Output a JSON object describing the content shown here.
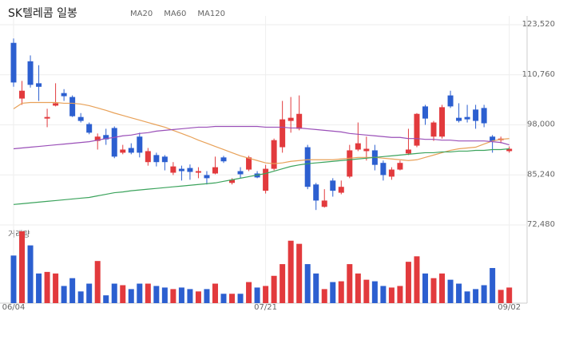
{
  "chart_data": {
    "type": "candlestick",
    "title": "SK텔레콤 일봉",
    "categories": [
      "06/04",
      null,
      null,
      null,
      null,
      null,
      null,
      null,
      null,
      null,
      null,
      null,
      null,
      null,
      null,
      null,
      null,
      null,
      null,
      null,
      null,
      null,
      null,
      null,
      null,
      null,
      null,
      null,
      null,
      null,
      "07/21",
      null,
      null,
      null,
      null,
      null,
      null,
      null,
      null,
      null,
      null,
      null,
      null,
      null,
      null,
      null,
      null,
      null,
      null,
      null,
      null,
      null,
      null,
      null,
      null,
      null,
      null,
      null,
      null,
      "09/02"
    ],
    "open": [
      118900,
      104700,
      114200,
      108600,
      99600,
      102900,
      106100,
      105100,
      100000,
      98200,
      93900,
      95400,
      97200,
      90900,
      92100,
      95000,
      88500,
      90300,
      89900,
      85800,
      86800,
      87000,
      85800,
      85200,
      85600,
      89700,
      83200,
      86200,
      86600,
      85600,
      81200,
      86800,
      92300,
      99000,
      97000,
      92300,
      82800,
      77100,
      83800,
      80700,
      84800,
      91700,
      91300,
      91500,
      88300,
      84800,
      86600,
      90700,
      92700,
      102700,
      95000,
      95000,
      105500,
      99800,
      100000,
      101900,
      102300,
      95000,
      94100,
      91300
    ],
    "high": [
      120000,
      109200,
      115700,
      113200,
      102100,
      108600,
      107100,
      105500,
      101000,
      98600,
      95800,
      97000,
      97600,
      92900,
      93300,
      96000,
      92100,
      90900,
      90300,
      88500,
      87600,
      87900,
      87200,
      86200,
      89900,
      90100,
      84400,
      87200,
      90100,
      86200,
      87800,
      94500,
      104100,
      105100,
      105500,
      92900,
      83200,
      81600,
      84400,
      83800,
      92900,
      98600,
      95000,
      92900,
      88900,
      87200,
      88900,
      97000,
      101000,
      103100,
      99000,
      103100,
      106700,
      103500,
      103100,
      103100,
      103100,
      95400,
      95000,
      92500
    ],
    "low": [
      107700,
      103100,
      107500,
      104100,
      97400,
      102700,
      104100,
      100000,
      98600,
      95600,
      91700,
      92900,
      89500,
      90500,
      90500,
      89700,
      87600,
      87400,
      86400,
      85200,
      83800,
      84000,
      84400,
      82800,
      85400,
      88300,
      82800,
      84400,
      86200,
      84400,
      80500,
      86400,
      90900,
      96000,
      96600,
      81600,
      76300,
      76900,
      79700,
      80300,
      84400,
      91300,
      88900,
      86400,
      83800,
      84000,
      86400,
      90300,
      92300,
      98000,
      93900,
      94500,
      102300,
      98600,
      98600,
      97000,
      97400,
      90900,
      93300,
      90900
    ],
    "close": [
      108800,
      106700,
      108200,
      107700,
      100000,
      103500,
      105300,
      100200,
      99000,
      96000,
      95000,
      94300,
      89900,
      91700,
      90900,
      90900,
      91300,
      88500,
      88500,
      87400,
      86200,
      86000,
      86200,
      84400,
      87200,
      88700,
      84000,
      85400,
      89700,
      84600,
      86800,
      94100,
      99400,
      99800,
      100800,
      82200,
      78700,
      78700,
      81200,
      82200,
      91500,
      93300,
      91900,
      87800,
      85200,
      86600,
      88300,
      91700,
      100800,
      99600,
      98600,
      102500,
      102700,
      99000,
      99400,
      99000,
      98400,
      93900,
      94500,
      91900
    ],
    "up_color": "#e23a3d",
    "down_color": "#2c5fd0",
    "series": [
      {
        "name": "MA20",
        "color": "#e8a158",
        "values": [
          102100,
          103500,
          103700,
          103700,
          103700,
          103700,
          103500,
          103500,
          103300,
          102900,
          102300,
          101700,
          101000,
          100400,
          99800,
          99200,
          98600,
          98000,
          97400,
          96600,
          95800,
          95000,
          94100,
          93300,
          92500,
          91700,
          90900,
          90100,
          89500,
          88900,
          88300,
          88100,
          88300,
          88700,
          88900,
          89100,
          89100,
          89100,
          89100,
          89300,
          89500,
          89700,
          89700,
          89700,
          89500,
          89300,
          89100,
          88900,
          89100,
          89700,
          90300,
          90900,
          91500,
          91900,
          92100,
          92300,
          93100,
          93900,
          94300,
          94500
        ]
      },
      {
        "name": "MA60",
        "color": "#9a4fb8",
        "values": [
          91900,
          92100,
          92300,
          92500,
          92700,
          92900,
          93100,
          93300,
          93500,
          93700,
          94100,
          94500,
          94800,
          95200,
          95400,
          95800,
          96000,
          96400,
          96600,
          96800,
          97000,
          97200,
          97400,
          97400,
          97600,
          97600,
          97600,
          97600,
          97600,
          97600,
          97400,
          97400,
          97400,
          97200,
          97200,
          97000,
          96800,
          96600,
          96400,
          96200,
          95800,
          95600,
          95400,
          95200,
          95000,
          94800,
          94800,
          94500,
          94500,
          94300,
          94300,
          94100,
          94100,
          93900,
          93900,
          93900,
          93900,
          93700,
          93500,
          92900
        ]
      },
      {
        "name": "MA120",
        "color": "#3ba35c",
        "values": [
          77700,
          77900,
          78100,
          78300,
          78500,
          78700,
          78900,
          79100,
          79300,
          79500,
          79900,
          80300,
          80700,
          80900,
          81200,
          81400,
          81600,
          81800,
          82000,
          82200,
          82400,
          82600,
          82800,
          83000,
          83200,
          83600,
          84000,
          84400,
          84800,
          85200,
          85600,
          86200,
          86800,
          87400,
          87800,
          88100,
          88300,
          88500,
          88700,
          88900,
          89100,
          89300,
          89500,
          89700,
          89900,
          90100,
          90300,
          90500,
          90700,
          90900,
          90900,
          91100,
          91100,
          91300,
          91300,
          91500,
          91500,
          91700,
          91700,
          91900
        ]
      }
    ],
    "volume": {
      "label": "거래량",
      "values": [
        61,
        92,
        74,
        38,
        40,
        38,
        22,
        32,
        15,
        25,
        54,
        10,
        25,
        23,
        18,
        25,
        25,
        22,
        20,
        18,
        20,
        18,
        15,
        18,
        25,
        12,
        12,
        12,
        27,
        20,
        22,
        35,
        50,
        80,
        76,
        50,
        38,
        18,
        27,
        28,
        50,
        38,
        30,
        28,
        22,
        20,
        22,
        53,
        60,
        38,
        32,
        38,
        30,
        25,
        15,
        18,
        23,
        45,
        17,
        20
      ]
    },
    "volume_ylim": [
      0,
      92
    ],
    "ylim": [
      72480,
      123520
    ],
    "yticks": [
      {
        "value": 72480,
        "label": "72,480"
      },
      {
        "value": 85240,
        "label": "85,240"
      },
      {
        "value": 98000,
        "label": "98,000"
      },
      {
        "value": 110760,
        "label": "110,760"
      },
      {
        "value": 123520,
        "label": "123,520"
      }
    ],
    "grid": true
  }
}
